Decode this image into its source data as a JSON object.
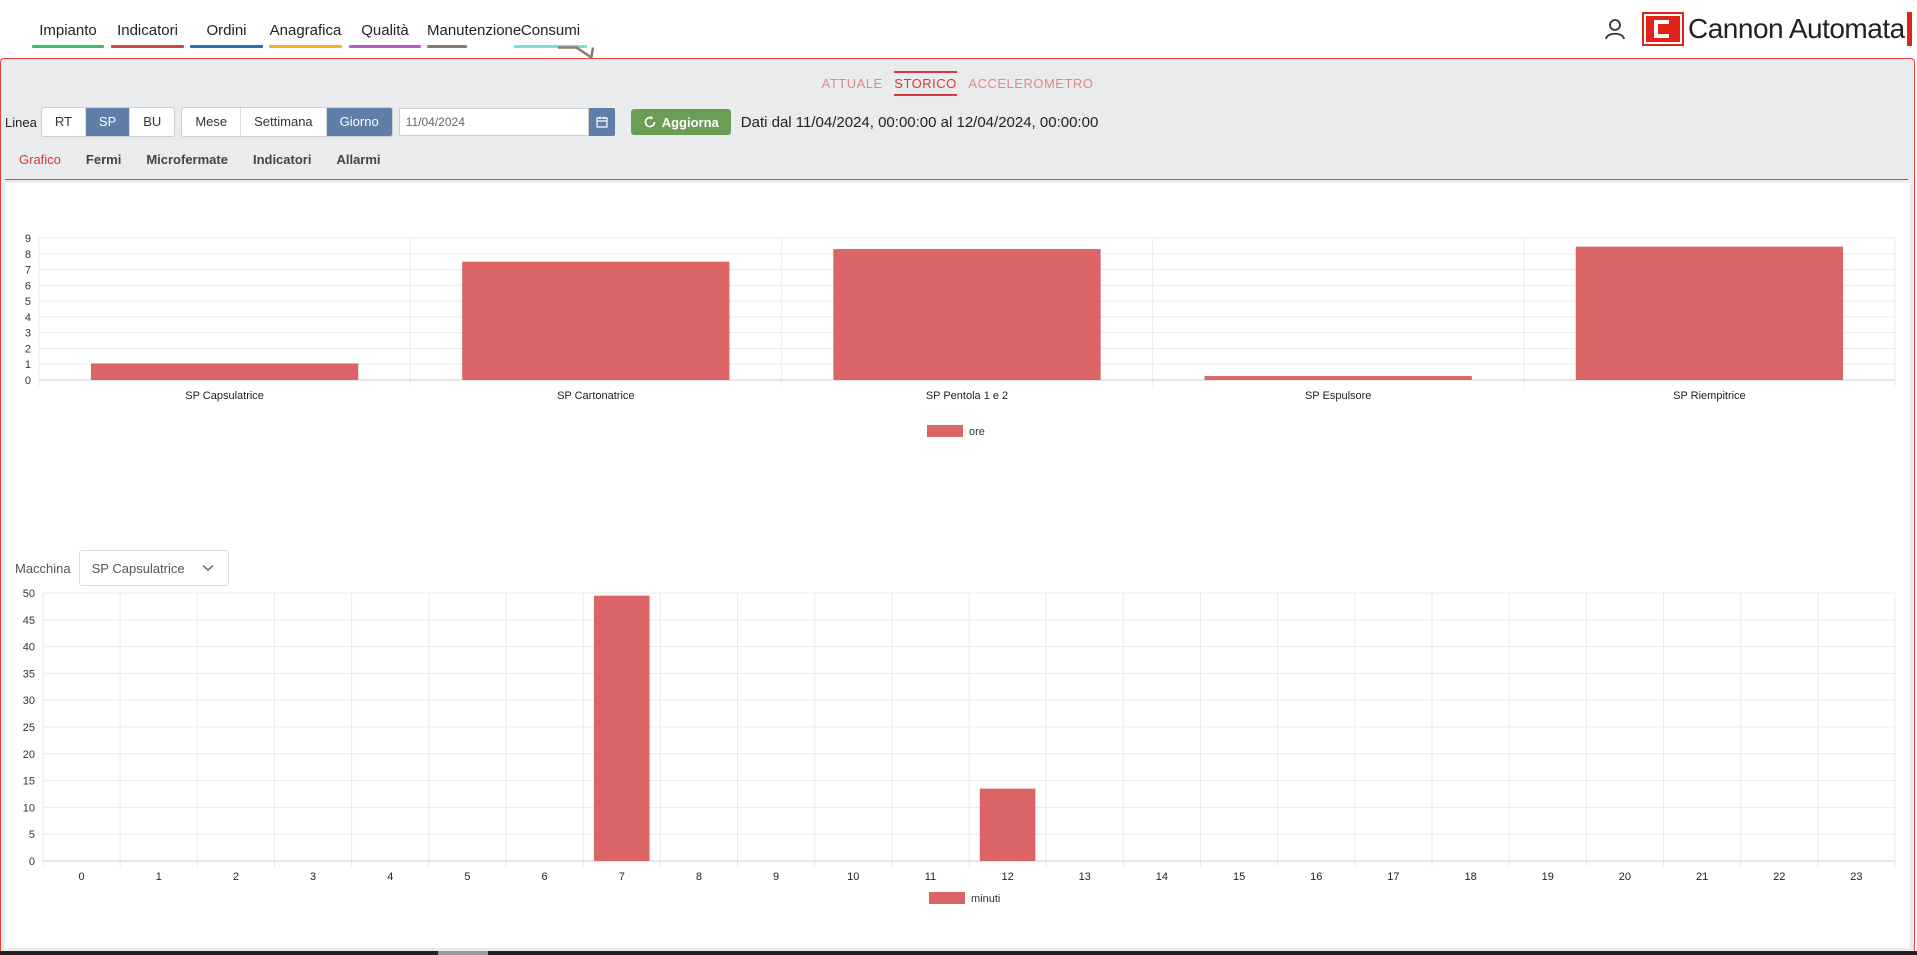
{
  "nav": {
    "items": [
      {
        "label": "Impianto",
        "color": "#3dbf6a"
      },
      {
        "label": "Indicatori",
        "color": "#d64545"
      },
      {
        "label": "Ordini",
        "color": "#2a6fb0"
      },
      {
        "label": "Anagrafica",
        "color": "#f0b429"
      },
      {
        "label": "Qualità",
        "color": "#b45cc6"
      },
      {
        "label": "Manutenzione",
        "color": "#8c7b6e"
      },
      {
        "label": "Consumi",
        "color": "#7fdcd6"
      }
    ],
    "user_icon": "user-icon",
    "logo_text": "Cannon Automata"
  },
  "subtabs": [
    "ATTUALE",
    "STORICO",
    "ACCELEROMETRO"
  ],
  "subtab_active": "STORICO",
  "controls": {
    "linea_label": "Linea",
    "linea_options": [
      "RT",
      "SP",
      "BU"
    ],
    "linea_selected": "SP",
    "period_options": [
      "Mese",
      "Settimana",
      "Giorno"
    ],
    "period_selected": "Giorno",
    "date_value": "11/04/2024",
    "refresh_label": "Aggiorna",
    "range_text": "Dati dal 11/04/2024, 00:00:00 al 12/04/2024, 00:00:00"
  },
  "viewtabs": [
    "Grafico",
    "Fermi",
    "Microfermate",
    "Indicatori",
    "Allarmi"
  ],
  "viewtab_active": "Grafico",
  "macchina": {
    "label": "Macchina",
    "selected": "SP Capsulatrice"
  },
  "colors": {
    "bar": "#db6566",
    "accent": "#d9363e",
    "selected": "#5f7ea8",
    "refresh": "#6a9d55"
  },
  "chart_data": [
    {
      "type": "bar",
      "categories": [
        "SP Capsulatrice",
        "SP Cartonatrice",
        "SP Pentola 1 e 2",
        "SP Espulsore",
        "SP Riempitrice"
      ],
      "series": [
        {
          "name": "ore",
          "values": [
            1.05,
            7.5,
            8.3,
            0.25,
            8.45
          ]
        }
      ],
      "ylim": [
        0,
        9
      ],
      "yticks": [
        0,
        1,
        2,
        3,
        4,
        5,
        6,
        7,
        8,
        9
      ],
      "legend": "bottom",
      "grid": true
    },
    {
      "type": "bar",
      "categories": [
        "0",
        "1",
        "2",
        "3",
        "4",
        "5",
        "6",
        "7",
        "8",
        "9",
        "10",
        "11",
        "12",
        "13",
        "14",
        "15",
        "16",
        "17",
        "18",
        "19",
        "20",
        "21",
        "22",
        "23"
      ],
      "series": [
        {
          "name": "minuti",
          "values": [
            0,
            0,
            0,
            0,
            0,
            0,
            0,
            49.5,
            0,
            0,
            0,
            0,
            13.5,
            0,
            0,
            0,
            0,
            0,
            0,
            0,
            0,
            0,
            0,
            0
          ]
        }
      ],
      "ylim": [
        0,
        50
      ],
      "yticks": [
        0,
        5,
        10,
        15,
        20,
        25,
        30,
        35,
        40,
        45,
        50
      ],
      "legend": "bottom",
      "grid": true
    }
  ]
}
